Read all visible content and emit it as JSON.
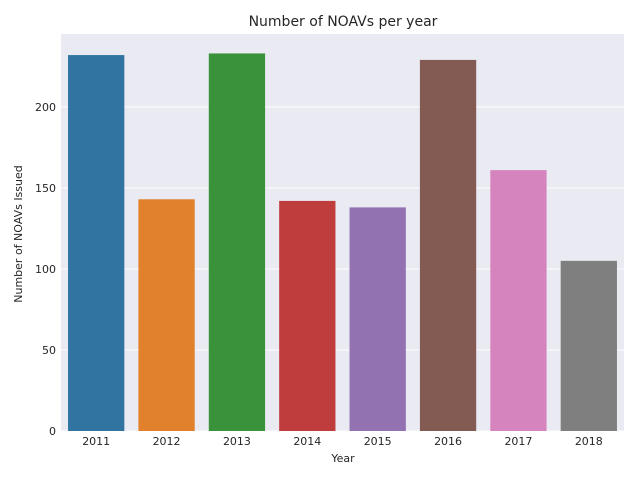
{
  "chart_data": {
    "type": "bar",
    "title": "Number of NOAVs per year",
    "xlabel": "Year",
    "ylabel": "Number of NOAVs Issued",
    "categories": [
      "2011",
      "2012",
      "2013",
      "2014",
      "2015",
      "2016",
      "2017",
      "2018"
    ],
    "values": [
      232,
      143,
      233,
      142,
      138,
      229,
      161,
      105
    ],
    "colors": [
      "#3274a1",
      "#e1812c",
      "#3a923a",
      "#c03d3e",
      "#9372b2",
      "#845b53",
      "#d684bd",
      "#7f7f7f"
    ],
    "ylim": [
      0,
      245
    ],
    "yticks": [
      0,
      50,
      100,
      150,
      200
    ],
    "grid": true,
    "background": "#eaeaf2",
    "grid_color": "#ffffff"
  }
}
